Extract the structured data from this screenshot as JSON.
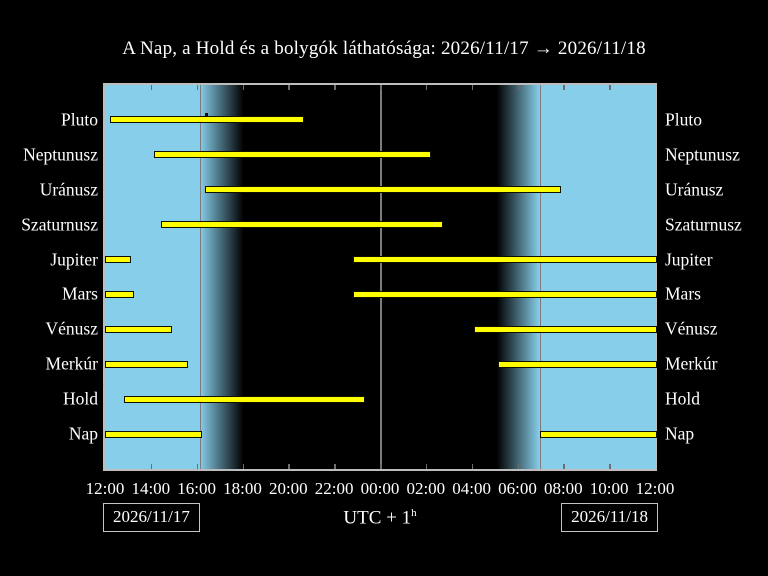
{
  "title": "A Nap, a Hold és a bolygók láthatósága: 2026/11/17 → 2026/11/18",
  "footer": {
    "date_left": "2026/11/17",
    "date_right": "2026/11/18",
    "axis_caption": "UTC + 1",
    "axis_caption_sup": "h"
  },
  "colors": {
    "background": "#000000",
    "day_sky": "#87ceeb",
    "night_sky": "#000000",
    "bar_fill": "#ffff00",
    "bar_border": "#101000",
    "grid_line": "#7c7c7c",
    "frame": "#bdbdbd",
    "text": "#ffffff"
  },
  "chart_data": {
    "type": "bar",
    "subtype": "horizontal-visibility-timeline",
    "title": "A Nap, a Hold és a bolygók láthatósága: 2026/11/17 → 2026/11/18",
    "xlabel": "UTC + 1h",
    "x_axis": {
      "window_start": "12:00 2026/11/17",
      "window_end": "12:00 2026/11/18",
      "tick_interval_hours": 2,
      "tick_labels": [
        "12:00",
        "14:00",
        "16:00",
        "18:00",
        "20:00",
        "22:00",
        "00:00",
        "02:00",
        "04:00",
        "06:00",
        "08:00",
        "10:00",
        "12:00"
      ]
    },
    "day_night": {
      "sunset": "16:08",
      "dusk_end": "18:03",
      "dawn_start": "05:06",
      "sunrise": "06:58",
      "midnight_line": "00:00"
    },
    "rows": [
      {
        "label": "Pluto",
        "intervals": [
          {
            "start": "12:13",
            "end": "20:37"
          }
        ],
        "transit_marker": "16:25"
      },
      {
        "label": "Neptunusz",
        "intervals": [
          {
            "start": "14:07",
            "end": "02:07"
          }
        ]
      },
      {
        "label": "Uránusz",
        "intervals": [
          {
            "start": "16:22",
            "end": "07:48"
          }
        ]
      },
      {
        "label": "Szaturnusz",
        "intervals": [
          {
            "start": "14:26",
            "end": "02:41"
          }
        ]
      },
      {
        "label": "Jupiter",
        "intervals": [
          {
            "start": "12:00",
            "end": "13:02"
          },
          {
            "start": "22:50",
            "end": "12:00"
          }
        ]
      },
      {
        "label": "Mars",
        "intervals": [
          {
            "start": "12:00",
            "end": "13:10"
          },
          {
            "start": "22:50",
            "end": "12:00"
          }
        ]
      },
      {
        "label": "Vénusz",
        "intervals": [
          {
            "start": "12:00",
            "end": "14:49"
          },
          {
            "start": "04:07",
            "end": "12:00"
          }
        ]
      },
      {
        "label": "Merkúr",
        "intervals": [
          {
            "start": "12:00",
            "end": "15:33"
          },
          {
            "start": "05:10",
            "end": "12:00"
          }
        ]
      },
      {
        "label": "Hold",
        "intervals": [
          {
            "start": "12:49",
            "end": "23:15"
          }
        ]
      },
      {
        "label": "Nap",
        "intervals": [
          {
            "start": "12:00",
            "end": "16:08"
          },
          {
            "start": "06:58",
            "end": "12:00"
          }
        ]
      }
    ]
  }
}
